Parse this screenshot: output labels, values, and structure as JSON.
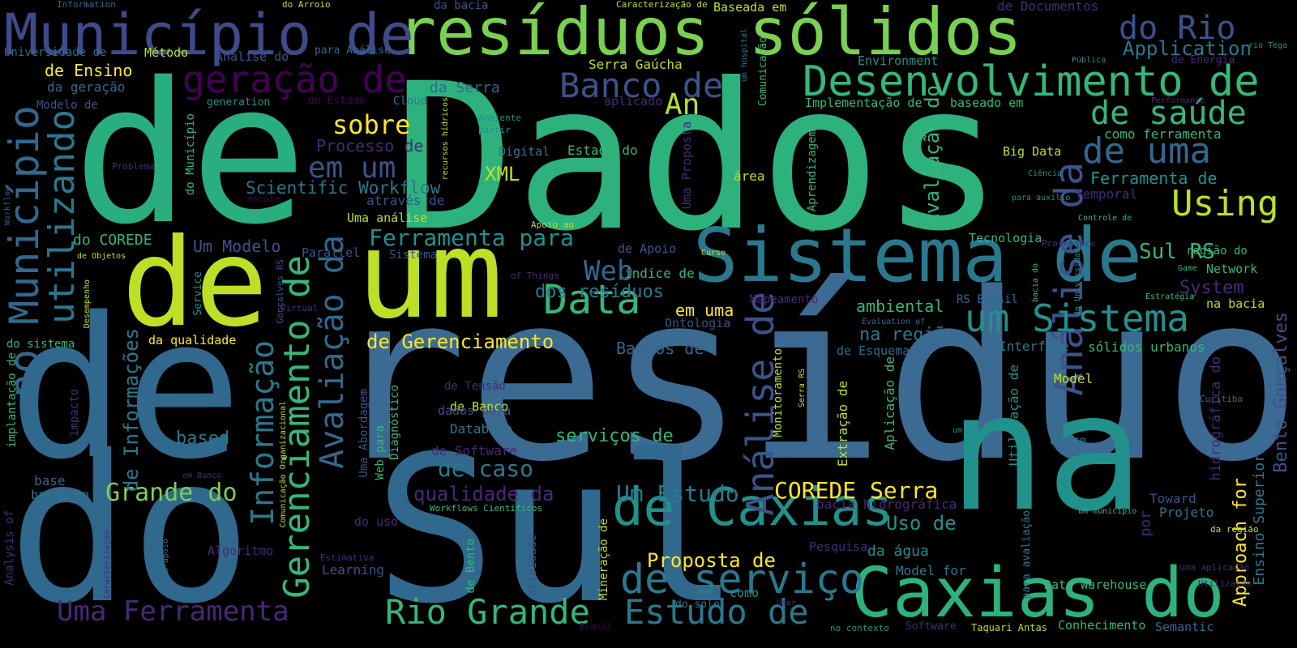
{
  "palette": {
    "viridis_purple": "#440154",
    "indigo": "#3b528b",
    "blue": "#31688e",
    "teal": "#21918c",
    "green": "#35b779",
    "lime": "#bddf26",
    "yellow": "#fde725"
  },
  "words": [
    "Dados",
    "resíduo",
    "do Sul",
    "na",
    "de",
    "de",
    "um",
    "de",
    "Sistema de",
    "Caxias do",
    "resíduos sólidos",
    "Município de",
    "de Caxias",
    "Desenvolvimento de",
    "de serviço",
    "Rio Grande",
    "Estudo de",
    "Gerenciamento de",
    "Informação",
    "Avaliação da",
    "Análise de",
    "Análise da",
    "um Sistema",
    "Data",
    "de uma",
    "de saúde",
    "Using",
    "geração de",
    "Banco de",
    "no Município",
    "utilizando",
    "Uma Ferramenta",
    "Grande do",
    "do Rio",
    "Web",
    "em um",
    "Sul RS",
    "COREDE Serra",
    "de Informações",
    "Um Estudo",
    "sobre",
    "An",
    "Application",
    "Ferramenta para",
    "Proposta de",
    "qualidade da",
    "de caso",
    "XML",
    "de Gerenciamento",
    "Scientific Workflow",
    "Uso de",
    "dos resíduos",
    "Approach for",
    "Bento Gonçalves",
    "serviços de",
    "ambiental",
    "na região",
    "based",
    "Ferramenta de",
    "Um Modelo",
    "Avaliação do",
    "Processo de",
    "Bancos de",
    "de Ensino",
    "System",
    "em uma",
    "Universidade de",
    "Método",
    "Análise do",
    "da Serra",
    "Serra Gaúcha",
    "Temporal",
    "Sistema",
    "Parallel",
    "Toward",
    "Projeto",
    "Ensino Superior",
    "Model",
    "Data Warehouse",
    "Pesquisa",
    "da água",
    "Learning",
    "Model for",
    "Database",
    "de Banco",
    "de Software",
    "Tecnologia",
    "Network",
    "Interface",
    "sólidos urbanos",
    "Big Data",
    "como ferramenta",
    "de Esquema",
    "hidrográfica do",
    "da geração",
    "Modelo de",
    "Baseada em",
    "através de",
    "Uma análise",
    "do COREDE",
    "Estado do",
    "Digital",
    "área",
    "de Aprendizagem",
    "Uma Proposta",
    "Ontologia",
    "Algoritmo",
    "da qualidade",
    "implantação de",
    "impacto",
    "Analysis of",
    "based on",
    "base",
    "do sistema",
    "Software",
    "Conhecimento",
    "Semantic",
    "Taquari Antas",
    "Extração de",
    "Aplicação de",
    "Utilização de",
    "entre",
    "Caracterização de",
    "de Documentos",
    "da bacia",
    "do Arroio",
    "Information",
    "Environment",
    "de Energia",
    "Pública",
    "rio Tega",
    "Cloud",
    "do Estado",
    "aplicado",
    "generation",
    "Implementação de",
    "baseado em",
    "para Análise",
    "Comunicação",
    "um hospital",
    "Performance",
    "Ciência",
    "para auxílio",
    "Controle de",
    "Provenance",
    "região do",
    "Game",
    "na bacia",
    "Estratégia",
    "bacia do",
    "da Universidade",
    "Curitiba",
    "um banco",
    "um município",
    "da região",
    "uma aplicação",
    "Utilização",
    "Curso",
    "Apoio ao",
    "de Apoio",
    "índice de",
    "of Things",
    "Mapeamento",
    "RS Brasil",
    "Evaluation of",
    "Monitoramento",
    "Serra RS",
    "Diagnóstico",
    "Uma Abordagem",
    "Web para",
    "dados para",
    "de Tensão",
    "Mineração de",
    "de Bento",
    "atividade",
    "bacia hidrográfica",
    "do uso",
    "do solo",
    "como",
    "User",
    "no contexto",
    "Brasil",
    "Workflows Científicos",
    "Comunicação Organizacional",
    "para apoio",
    "Caracterização",
    "Estimativa",
    "em Banco",
    "Virtual",
    "Service",
    "Gonçalves RS",
    "Desempenho",
    "de Objetos",
    "Problema",
    "escola",
    "Workflow",
    "do Município",
    "recursos hídricos",
    "Ambiente",
    "partir",
    "por",
    "para avaliação"
  ]
}
